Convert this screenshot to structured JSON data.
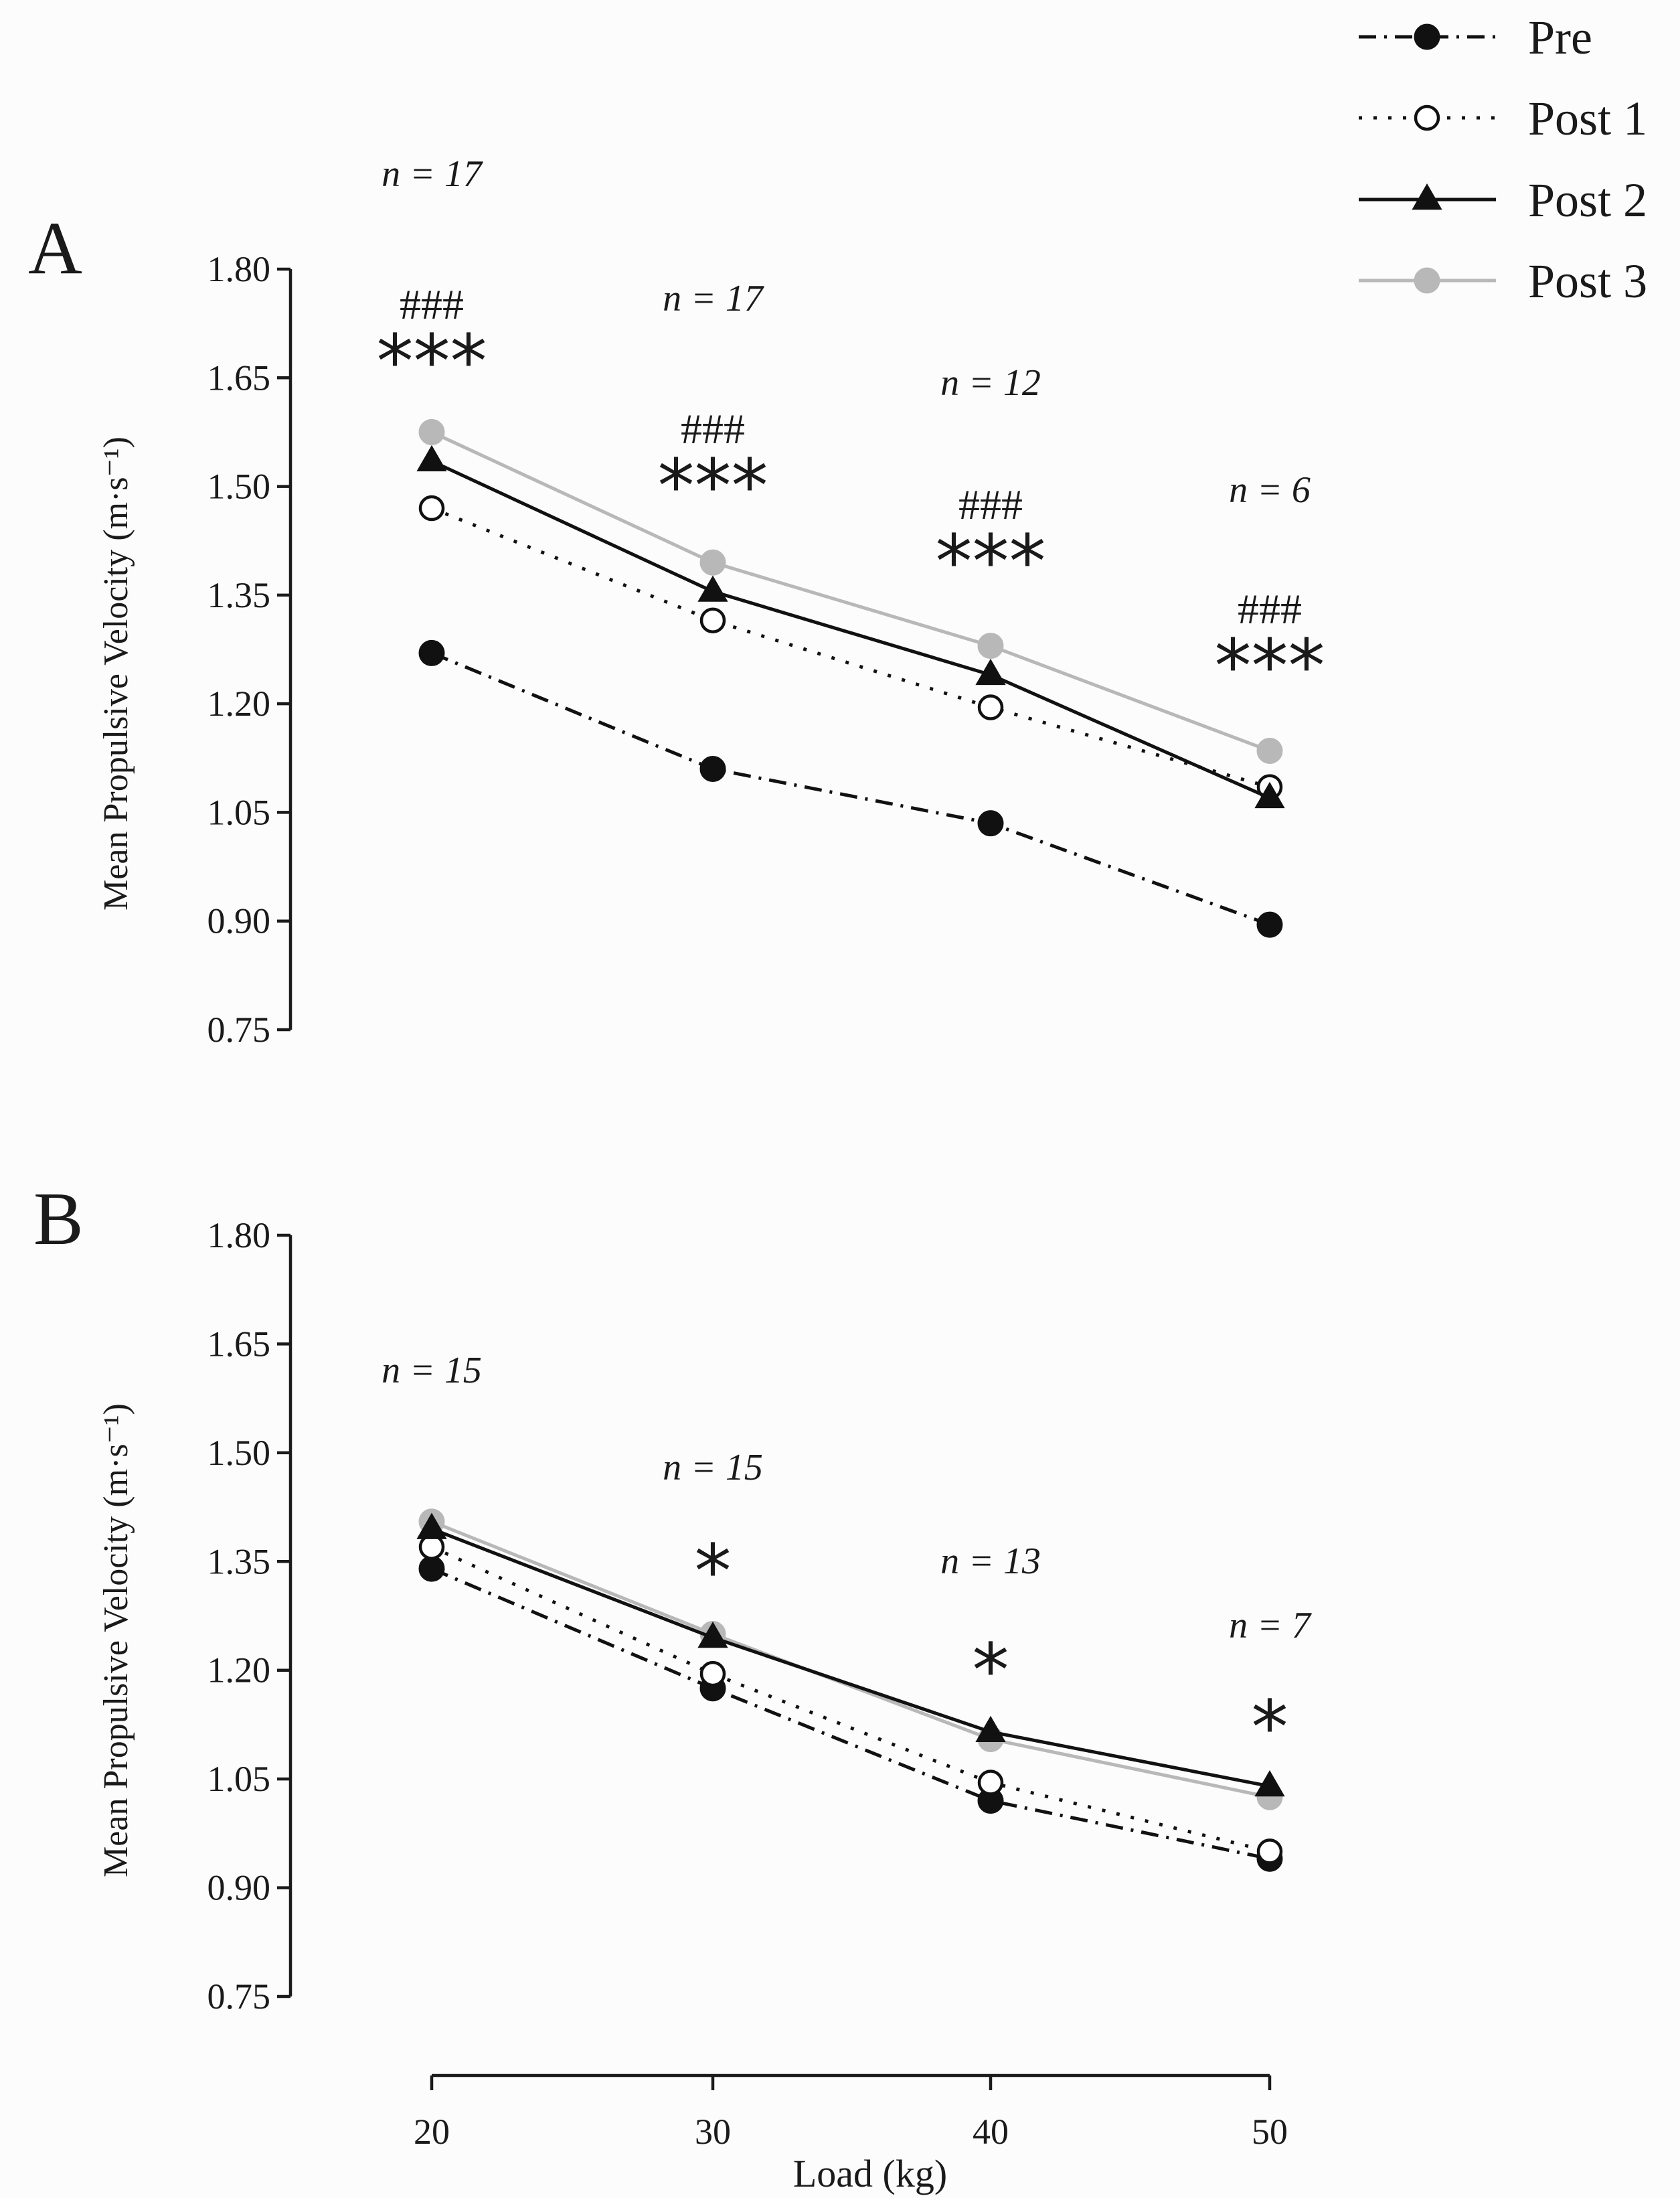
{
  "legend": [
    {
      "name": "Pre"
    },
    {
      "name": "Post 1"
    },
    {
      "name": "Post 2"
    },
    {
      "name": "Post 3"
    }
  ],
  "styles": {
    "Pre": {
      "color": "#111111",
      "marker": "filled-circle",
      "line": "dash-dot"
    },
    "Post 1": {
      "color": "#111111",
      "marker": "open-circle",
      "line": "dotted"
    },
    "Post 2": {
      "color": "#111111",
      "marker": "filled-triangle",
      "line": "solid"
    },
    "Post 3": {
      "color": "#b8b8b8",
      "marker": "filled-circle",
      "line": "solid"
    }
  },
  "chart_data": [
    {
      "type": "line",
      "panel_label": "A",
      "ylabel": "Mean Propulsive Velocity (m·s⁻¹)",
      "xlabel": "",
      "ylim": [
        0.75,
        1.8
      ],
      "yticks": [
        "0.75",
        "0.90",
        "1.05",
        "1.20",
        "1.35",
        "1.50",
        "1.65",
        "1.80"
      ],
      "x": [
        20,
        30,
        40,
        50
      ],
      "series": [
        {
          "name": "Pre",
          "values": [
            1.27,
            1.11,
            1.035,
            0.895
          ]
        },
        {
          "name": "Post 1",
          "values": [
            1.47,
            1.315,
            1.195,
            1.085
          ]
        },
        {
          "name": "Post 2",
          "values": [
            1.535,
            1.355,
            1.24,
            1.07
          ]
        },
        {
          "name": "Post 3",
          "values": [
            1.575,
            1.395,
            1.28,
            1.135
          ]
        }
      ],
      "annotations": [
        {
          "x": 20,
          "n": "n = 17",
          "hash": "###",
          "stars": "***"
        },
        {
          "x": 30,
          "n": "n = 17",
          "hash": "###",
          "stars": "***"
        },
        {
          "x": 40,
          "n": "n = 12",
          "hash": "###",
          "stars": "***"
        },
        {
          "x": 50,
          "n": "n = 6",
          "hash": "###",
          "stars": "***"
        }
      ]
    },
    {
      "type": "line",
      "panel_label": "B",
      "ylabel": "Mean Propulsive Velocity (m·s⁻¹)",
      "xlabel": "Load (kg)",
      "ylim": [
        0.75,
        1.8
      ],
      "yticks": [
        "0.75",
        "0.90",
        "1.05",
        "1.20",
        "1.35",
        "1.50",
        "1.65",
        "1.80"
      ],
      "xticks": [
        "20",
        "30",
        "40",
        "50"
      ],
      "x": [
        20,
        30,
        40,
        50
      ],
      "series": [
        {
          "name": "Pre",
          "values": [
            1.34,
            1.175,
            1.02,
            0.94
          ]
        },
        {
          "name": "Post 1",
          "values": [
            1.37,
            1.195,
            1.045,
            0.95
          ]
        },
        {
          "name": "Post 2",
          "values": [
            1.395,
            1.245,
            1.115,
            1.04
          ]
        },
        {
          "name": "Post 3",
          "values": [
            1.405,
            1.25,
            1.105,
            1.025
          ]
        }
      ],
      "annotations": [
        {
          "x": 20,
          "n": "n = 15",
          "hash": "",
          "stars": ""
        },
        {
          "x": 30,
          "n": "n = 15",
          "hash": "",
          "stars": "*"
        },
        {
          "x": 40,
          "n": "n = 13",
          "hash": "",
          "stars": "*"
        },
        {
          "x": 50,
          "n": "n = 7",
          "hash": "",
          "stars": "*"
        }
      ]
    }
  ]
}
